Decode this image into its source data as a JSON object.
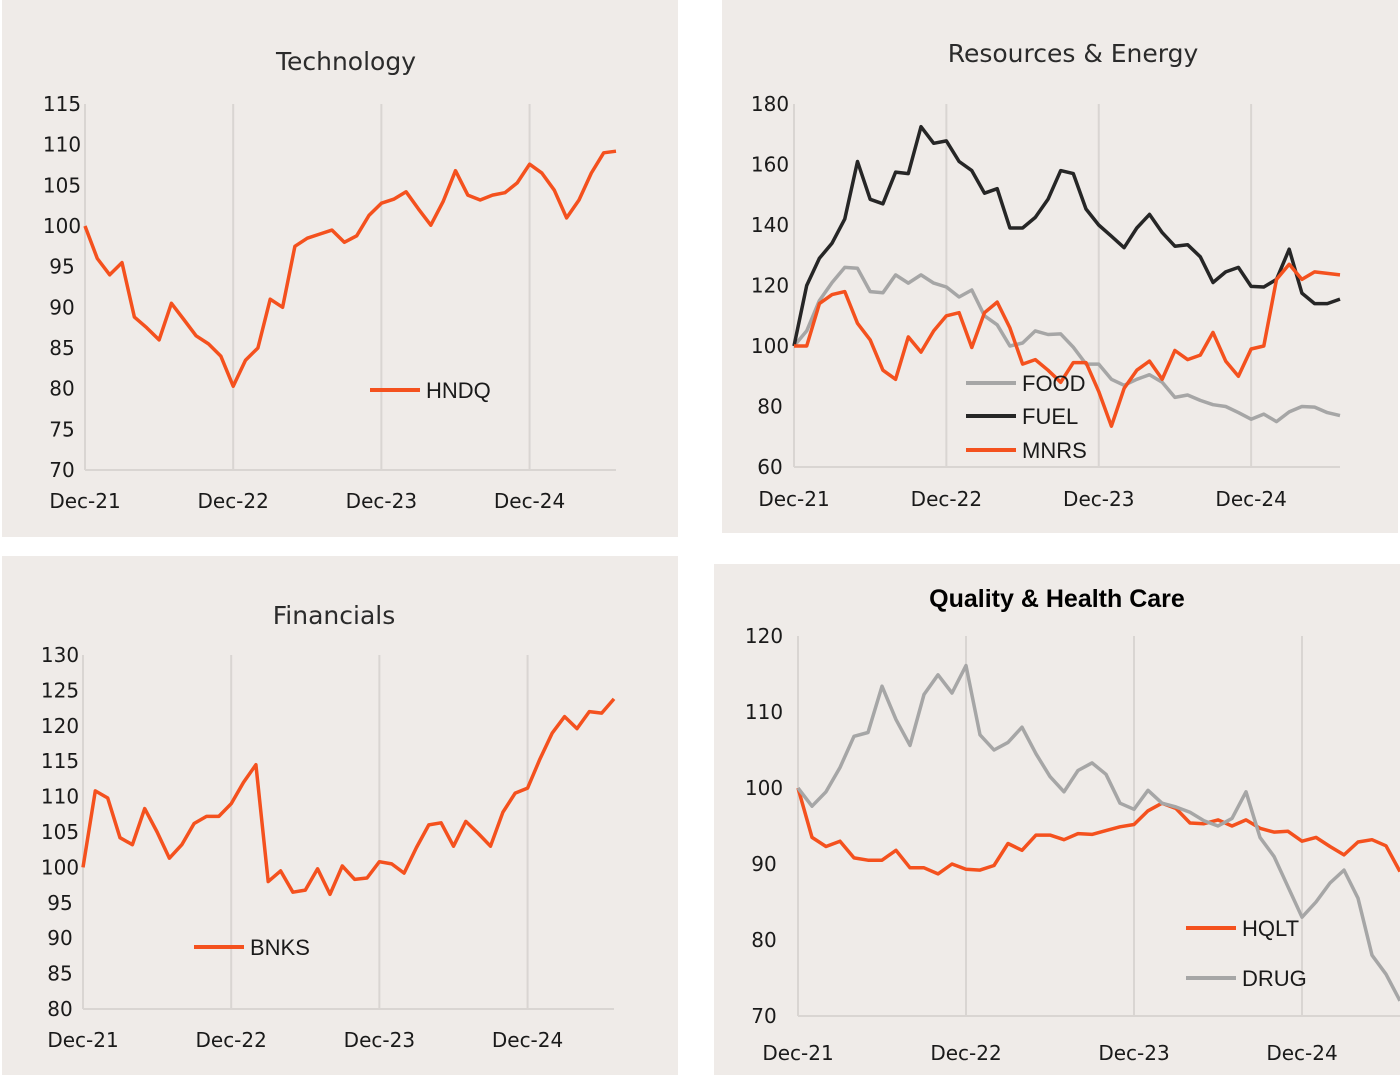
{
  "chart_data": [
    {
      "type": "line",
      "title": "Technology",
      "xlabel": "",
      "ylabel": "",
      "ylim": [
        70,
        115
      ],
      "yticks": [
        "70",
        "75",
        "80",
        "85",
        "90",
        "95",
        "100",
        "105",
        "110",
        "115"
      ],
      "xtick_labels": [
        "Dec-21",
        "Dec-22",
        "Dec-23",
        "Dec-24"
      ],
      "x_range_months": [
        0,
        43
      ],
      "grid": "vertical",
      "legend": "center",
      "series": [
        {
          "name": "HNDQ",
          "color": "#f4511e",
          "values": [
            100,
            96,
            94,
            95.5,
            88.8,
            87.5,
            86,
            90.5,
            88.5,
            86.5,
            85.5,
            84,
            80.3,
            83.5,
            85,
            91,
            90,
            97.5,
            98.5,
            99,
            99.5,
            98,
            98.8,
            101.3,
            102.8,
            103.3,
            104.2,
            102.1,
            100.1,
            103,
            106.8,
            103.8,
            103.2,
            103.8,
            104.1,
            105.3,
            107.6,
            106.5,
            104.4,
            101,
            103.2,
            106.5,
            109,
            109.2
          ]
        }
      ]
    },
    {
      "type": "line",
      "title": "Resources & Energy",
      "xlabel": "",
      "ylabel": "",
      "ylim": [
        60,
        180
      ],
      "yticks": [
        "60",
        "80",
        "100",
        "120",
        "140",
        "160",
        "180"
      ],
      "xtick_labels": [
        "Dec-21",
        "Dec-22",
        "Dec-23",
        "Dec-24"
      ],
      "x_range_months": [
        0,
        43
      ],
      "grid": "vertical",
      "legend": "bottom-left",
      "series": [
        {
          "name": "FOOD",
          "color": "#a6a6a6",
          "values": [
            100,
            105,
            115,
            121,
            126,
            125.7,
            118,
            117.6,
            123.5,
            120.8,
            123.5,
            120.8,
            119.5,
            116.2,
            118.5,
            110,
            107,
            100,
            101,
            105,
            103.8,
            104,
            99.6,
            94,
            94,
            89,
            87,
            89,
            90.5,
            88,
            83,
            83.8,
            82,
            80.6,
            80,
            78,
            75.8,
            77.5,
            75,
            78.2,
            80,
            79.8,
            78,
            77
          ]
        },
        {
          "name": "FUEL",
          "color": "#262626",
          "values": [
            100,
            120,
            129,
            134,
            142,
            161,
            148.5,
            147,
            157.5,
            157,
            172.5,
            167,
            167.8,
            161,
            158,
            150.5,
            152,
            139,
            139,
            142.5,
            148.5,
            158,
            157,
            145.3,
            140,
            136.3,
            132.5,
            139,
            143.5,
            137.5,
            133,
            133.5,
            129.5,
            121,
            124.5,
            126,
            119.7,
            119.5,
            122,
            132,
            117.5,
            114,
            114,
            115.5
          ]
        },
        {
          "name": "MNRS",
          "color": "#f4511e",
          "values": [
            100,
            100,
            114,
            117,
            118,
            107.5,
            102,
            92,
            89,
            103,
            98,
            105,
            110,
            111,
            99.5,
            111,
            114.5,
            106,
            94,
            95.5,
            92,
            88,
            94.5,
            94.5,
            85,
            73.5,
            86,
            92,
            95,
            89,
            98.5,
            95.5,
            97,
            104.5,
            95,
            90,
            99,
            100,
            122,
            127,
            122,
            124.5,
            124,
            123.5
          ]
        }
      ]
    },
    {
      "type": "line",
      "title": "Financials",
      "xlabel": "",
      "ylabel": "",
      "ylim": [
        80,
        130
      ],
      "yticks": [
        "80",
        "85",
        "90",
        "95",
        "100",
        "105",
        "110",
        "115",
        "120",
        "125",
        "130"
      ],
      "xtick_labels": [
        "Dec-21",
        "Dec-22",
        "Dec-23",
        "Dec-24"
      ],
      "x_range_months": [
        0,
        43
      ],
      "grid": "vertical",
      "legend": "bottom-left",
      "series": [
        {
          "name": "BNKS",
          "color": "#f4511e",
          "values": [
            100,
            110.8,
            109.8,
            104.2,
            103.2,
            108.3,
            105,
            101.3,
            103.2,
            106.2,
            107.2,
            107.2,
            109,
            112,
            114.5,
            98,
            99.5,
            96.5,
            96.8,
            99.8,
            96.2,
            100.2,
            98.3,
            98.5,
            100.8,
            100.5,
            99.2,
            102.8,
            106,
            106.3,
            103,
            106.5,
            104.8,
            103,
            107.8,
            110.5,
            111.2,
            115.3,
            119,
            121.3,
            119.6,
            122,
            121.8,
            123.8
          ]
        }
      ]
    },
    {
      "type": "line",
      "title": "Quality & Health Care",
      "xlabel": "",
      "ylabel": "",
      "ylim": [
        70,
        120
      ],
      "yticks": [
        "70",
        "80",
        "90",
        "100",
        "110",
        "120"
      ],
      "xtick_labels": [
        "Dec-21",
        "Dec-22",
        "Dec-23",
        "Dec-24"
      ],
      "x_range_months": [
        0,
        43
      ],
      "grid": "vertical",
      "legend": "bottom-right",
      "series": [
        {
          "name": "HQLT",
          "color": "#f4511e",
          "values": [
            100,
            93.5,
            92.3,
            93,
            90.8,
            90.5,
            90.5,
            91.8,
            89.5,
            89.5,
            88.7,
            90,
            89.3,
            89.2,
            89.8,
            92.7,
            91.8,
            93.8,
            93.8,
            93.2,
            94,
            93.9,
            94.4,
            94.9,
            95.2,
            97,
            98,
            97.3,
            95.4,
            95.3,
            95.8,
            95,
            95.8,
            94.7,
            94.2,
            94.3,
            93,
            93.5,
            92.3,
            91.2,
            92.9,
            93.2,
            92.4,
            89
          ]
        },
        {
          "name": "DRUG",
          "color": "#a6a6a6",
          "values": [
            100,
            97.6,
            99.5,
            102.7,
            106.8,
            107.3,
            113.4,
            109,
            105.6,
            112.3,
            114.9,
            112.5,
            116.1,
            107,
            105,
            106,
            108,
            104.5,
            101.5,
            99.5,
            102.3,
            103.3,
            101.8,
            98,
            97.2,
            99.7,
            98,
            97.5,
            96.8,
            95.7,
            95,
            96,
            99.5,
            93.5,
            91,
            87,
            83,
            85,
            87.5,
            89.2,
            85.5,
            78,
            75.5,
            72
          ]
        }
      ]
    }
  ]
}
